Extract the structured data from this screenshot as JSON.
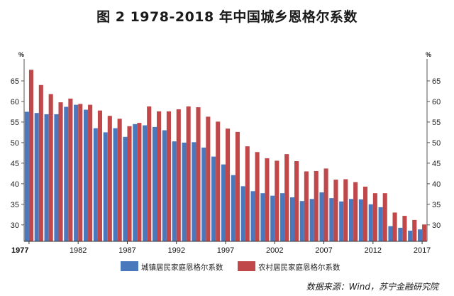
{
  "chart_data": {
    "type": "bar",
    "title": "图 2   1978-2018 年中国城乡恩格尔系数",
    "y_unit_left": "%",
    "y_unit_right": "%",
    "ylim": [
      26,
      70
    ],
    "yticks": [
      30,
      35,
      40,
      45,
      50,
      55,
      60,
      65
    ],
    "x_first": 1977,
    "x_last": 2017,
    "xticks": [
      1977,
      1982,
      1987,
      1992,
      1997,
      2002,
      2007,
      2012,
      2017
    ],
    "categories": [
      1977,
      1978,
      1979,
      1980,
      1981,
      1982,
      1983,
      1984,
      1985,
      1986,
      1987,
      1988,
      1989,
      1990,
      1991,
      1992,
      1993,
      1994,
      1995,
      1996,
      1997,
      1998,
      1999,
      2000,
      2001,
      2002,
      2003,
      2004,
      2005,
      2006,
      2007,
      2008,
      2009,
      2010,
      2011,
      2012,
      2013,
      2014,
      2015,
      2016,
      2017
    ],
    "series": [
      {
        "name": "城镇居民家庭恩格尔系数",
        "color": "#4a78bd",
        "values": [
          57.5,
          57.2,
          56.9,
          56.9,
          58.7,
          59.2,
          58.0,
          53.5,
          52.5,
          53.5,
          51.4,
          54.5,
          54.2,
          53.8,
          53.0,
          50.3,
          50.0,
          50.1,
          48.8,
          46.6,
          44.7,
          42.1,
          39.4,
          38.2,
          37.7,
          37.1,
          37.7,
          36.7,
          35.8,
          36.3,
          37.9,
          36.5,
          35.7,
          36.3,
          36.2,
          35.0,
          34.3,
          29.7,
          29.3,
          28.6,
          28.9
        ]
      },
      {
        "name": "农村居民家庭恩格尔系数",
        "color": "#c0484a",
        "values": [
          67.7,
          64.0,
          61.8,
          59.8,
          60.7,
          59.4,
          59.2,
          57.8,
          56.5,
          55.8,
          54.0,
          54.8,
          58.8,
          57.6,
          57.6,
          58.1,
          58.8,
          58.6,
          56.3,
          55.1,
          53.4,
          52.6,
          49.1,
          47.7,
          46.2,
          45.6,
          47.2,
          45.5,
          43.0,
          43.1,
          43.7,
          41.0,
          41.1,
          40.4,
          39.3,
          37.7,
          37.7,
          33.0,
          32.2,
          31.2,
          30.1
        ]
      }
    ]
  },
  "source": "数据来源：Wind，苏宁金融研究院"
}
